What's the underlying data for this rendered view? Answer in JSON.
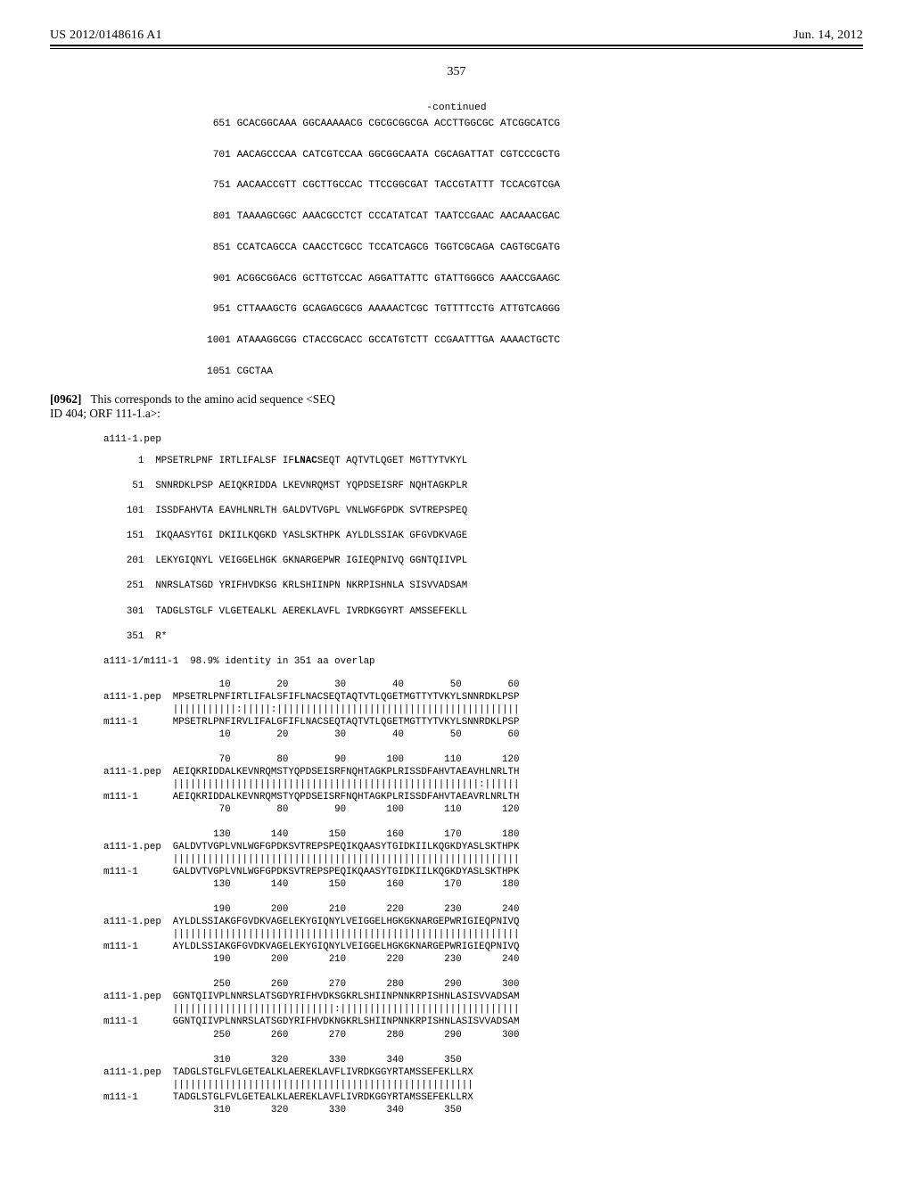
{
  "header": {
    "left": "US 2012/0148616 A1",
    "right": "Jun. 14, 2012"
  },
  "page_number": "357",
  "continued_label": "-continued",
  "dna_sequence": {
    "font_family": "Courier New",
    "font_size_pt": 8.5,
    "lines": [
      {
        "pos": "651",
        "groups": [
          "GCACGGCAAA",
          "GGCAAAAACG",
          "CGCGCGGCGA",
          "ACCTTGGCGC",
          "ATCGGCATCG"
        ]
      },
      {
        "pos": "701",
        "groups": [
          "AACAGCCCAA",
          "CATCGTCCAA",
          "GGCGGCAATA",
          "CGCAGATTAT",
          "CGTCCCGCTG"
        ]
      },
      {
        "pos": "751",
        "groups": [
          "AACAACCGTT",
          "CGCTTGCCAC",
          "TTCCGGCGAT",
          "TACCGTATTT",
          "TCCACGTCGA"
        ]
      },
      {
        "pos": "801",
        "groups": [
          "TAAAAGCGGC",
          "AAACGCCTCT",
          "CCCATATCAT",
          "TAATCCGAAC",
          "AACAAACGAC"
        ]
      },
      {
        "pos": "851",
        "groups": [
          "CCATCAGCCA",
          "CAACCTCGCC",
          "TCCATCAGCG",
          "TGGTCGCAGA",
          "CAGTGCGATG"
        ]
      },
      {
        "pos": "901",
        "groups": [
          "ACGGCGGACG",
          "GCTTGTCCAC",
          "AGGATTATTC",
          "GTATTGGGCG",
          "AAACCGAAGC"
        ]
      },
      {
        "pos": "951",
        "groups": [
          "CTTAAAGCTG",
          "GCAGAGCGCG",
          "AAAAACTCGC",
          "TGTTTTCCTG",
          "ATTGTCAGGG"
        ]
      },
      {
        "pos": "1001",
        "groups": [
          "ATAAAGGCGG",
          "CTACCGCACC",
          "GCCATGTCTT",
          "CCGAATTTGA",
          "AAAACTGCTC"
        ]
      },
      {
        "pos": "1051",
        "groups": [
          "CGCTAA"
        ]
      }
    ]
  },
  "paragraph": {
    "number": "[0962]",
    "text_a": "This corresponds to the amino acid sequence <SEQ",
    "text_b": "ID 404; ORF 111-1.a>:"
  },
  "protein_header": "a111-1.pep",
  "protein_sequence": {
    "font_family": "Courier New",
    "font_size_pt": 8.2,
    "lines": [
      {
        "pos": "1",
        "groups": [
          "MPSETRLPNF",
          "IRTLIFALSF",
          "IF",
          "LNAC",
          "SEQT",
          "AQTVTLQGET",
          "MGTTYTVKYL"
        ],
        "bold_idx": 3
      },
      {
        "pos": "51",
        "groups": [
          "SNNRDKLPSP",
          "AEIQKRIDDA",
          "LKEVNRQMST",
          "YQPDSEISRF",
          "NQHTAGKPLR"
        ]
      },
      {
        "pos": "101",
        "groups": [
          "ISSDFAHVTA",
          "EAVHLNRLTH",
          "GALDVTVGPL",
          "VNLWGFGPDK",
          "SVTREPSPEQ"
        ]
      },
      {
        "pos": "151",
        "groups": [
          "IKQAASYTGI",
          "DKIILKQGKD",
          "YASLSKTHPK",
          "AYLDLSSIAK",
          "GFGVDKVAGE"
        ]
      },
      {
        "pos": "201",
        "groups": [
          "LEKYGIQNYL",
          "VEIGGELHGK",
          "GKNARGEPWR",
          "IGIEQPNIVQ",
          "GGNTQIIVPL"
        ]
      },
      {
        "pos": "251",
        "groups": [
          "NNRSLATSGD",
          "YRIFHVDKSG",
          "KRLSHIINPN",
          "NKRPISHNLA",
          "SISVVADSAM"
        ]
      },
      {
        "pos": "301",
        "groups": [
          "TADGLSTGLF",
          "VLGETEALKL",
          "AEREKLAVFL",
          "IVRDKGGYRT",
          "AMSSEFEKLL"
        ]
      },
      {
        "pos": "351",
        "groups": [
          "R*"
        ]
      }
    ]
  },
  "alignment": {
    "identity_line": "a111-1/m111-1  98.9% identity in 351 aa overlap",
    "colors": {
      "text": "#000000",
      "background": "#ffffff"
    },
    "font_family": "Courier New",
    "font_size_pt": 8.1,
    "blocks": [
      {
        "ruler_top": "                    10        20        30        40        50        60",
        "row_a_label": "a111-1.pep",
        "row_a_seq": "MPSETRLPNFIRTLIFALSFIFLNACSEQTAQTVTLQGETMGTTYTVKYLSNNRDKLPSP",
        "match": "|||||||||||:|||||:||||||||||||||||||||||||||||||||||||||||||",
        "row_b_label": "m111-1",
        "row_b_seq": "MPSETRLPNFIRVLIFALGFIFLNACSEQTAQTVTLQGETMGTTYTVKYLSNNRDKLPSP",
        "ruler_bot": "                    10        20        30        40        50        60"
      },
      {
        "ruler_top": "                    70        80        90       100       110       120",
        "row_a_label": "a111-1.pep",
        "row_a_seq": "AEIQKRIDDALKEVNRQMSTYQPDSEISRFNQHTAGKPLRISSDFAHVTAEAVHLNRLTH",
        "match": "|||||||||||||||||||||||||||||||||||||||||||||||||||||:||||||",
        "row_b_label": "m111-1",
        "row_b_seq": "AEIQKRIDDALKEVNRQMSTYQPDSEISRFNQHTAGKPLRISSDFAHVTAEAVRLNRLTH",
        "ruler_bot": "                    70        80        90       100       110       120"
      },
      {
        "ruler_top": "                   130       140       150       160       170       180",
        "row_a_label": "a111-1.pep",
        "row_a_seq": "GALDVTVGPLVNLWGFGPDKSVTREPSPEQIKQAASYTGIDKIILKQGKDYASLSKTHPK",
        "match": "||||||||||||||||||||||||||||||||||||||||||||||||||||||||||||",
        "row_b_label": "m111-1",
        "row_b_seq": "GALDVTVGPLVNLWGFGPDKSVTREPSPEQIKQAASYTGIDKIILKQGKDYASLSKTHPK",
        "ruler_bot": "                   130       140       150       160       170       180"
      },
      {
        "ruler_top": "                   190       200       210       220       230       240",
        "row_a_label": "a111-1.pep",
        "row_a_seq": "AYLDLSSIAKGFGVDKVAGELEKYGIQNYLVEIGGELHGKGKNARGEPWRIGIEQPNIVQ",
        "match": "||||||||||||||||||||||||||||||||||||||||||||||||||||||||||||",
        "row_b_label": "m111-1",
        "row_b_seq": "AYLDLSSIAKGFGVDKVAGELEKYGIQNYLVEIGGELHGKGKNARGEPWRIGIEQPNIVQ",
        "ruler_bot": "                   190       200       210       220       230       240"
      },
      {
        "ruler_top": "                   250       260       270       280       290       300",
        "row_a_label": "a111-1.pep",
        "row_a_seq": "GGNTQIIVPLNNRSLATSGDYRIFHVDKSGKRLSHIINPNNKRPISHNLASISVVADSAM",
        "match": "||||||||||||||||||||||||||||:|||||||||||||||||||||||||||||||",
        "row_b_label": "m111-1",
        "row_b_seq": "GGNTQIIVPLNNRSLATSGDYRIFHVDKNGKRLSHIINPNNKRPISHNLASISVVADSAM",
        "ruler_bot": "                   250       260       270       280       290       300"
      },
      {
        "ruler_top": "                   310       320       330       340       350",
        "row_a_label": "a111-1.pep",
        "row_a_seq": "TADGLSTGLFVLGETEALKLAEREKLAVFLIVRDKGGYRTAMSSEFEKLLRX",
        "match": "||||||||||||||||||||||||||||||||||||||||||||||||||||",
        "row_b_label": "m111-1",
        "row_b_seq": "TADGLSTGLFVLGETEALKLAEREKLAVFLIVRDKGGYRTAMSSEFEKLLRX",
        "ruler_bot": "                   310       320       330       340       350"
      }
    ]
  }
}
